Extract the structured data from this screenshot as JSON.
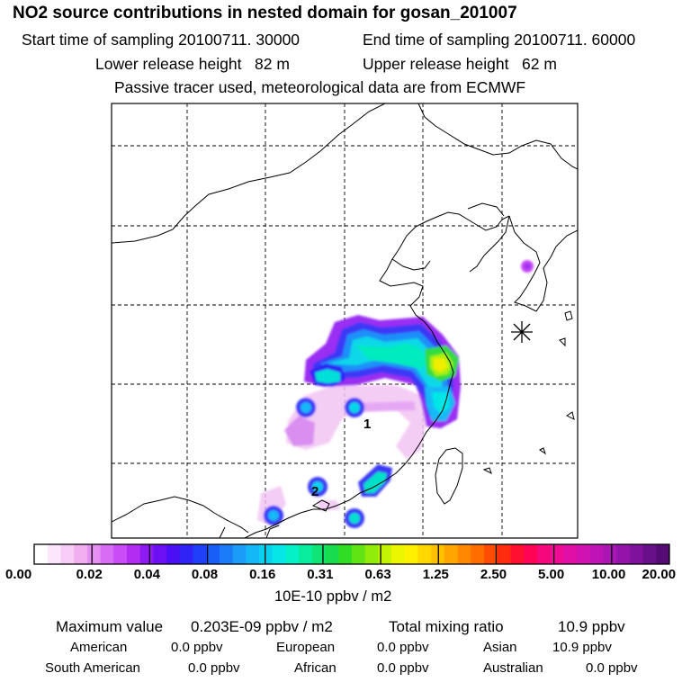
{
  "header": {
    "title": "NO2 source contributions in nested domain for gosan_201007",
    "start_time": "Start time of sampling 20100711. 30000",
    "end_time": "End time of sampling 20100711. 60000",
    "lower_height": "Lower release height   82 m",
    "upper_height": "Upper release height   62 m",
    "tracer_note": "Passive tracer used, meteorological data are from ECMWF"
  },
  "map": {
    "point_labels": [
      "1",
      "2"
    ],
    "station_marker": "station-asterisk"
  },
  "colorbar": {
    "tick_labels": [
      "0.00",
      "0.02",
      "0.04",
      "0.08",
      "0.16",
      "0.31",
      "0.63",
      "1.25",
      "2.50",
      "5.00",
      "10.00",
      "20.00"
    ],
    "unit": "10E-10 ppbv / m2",
    "colors": [
      "#ffffff",
      "#fbe6fb",
      "#f6cdf6",
      "#f0b0f0",
      "#e690f3",
      "#d96cf5",
      "#c94cf6",
      "#b22cf2",
      "#8e1af0",
      "#6a10f2",
      "#4a0ff2",
      "#2f24f5",
      "#1f40f8",
      "#1a5ef8",
      "#1a7cf8",
      "#1a9cf8",
      "#12b8f6",
      "#0ad0f0",
      "#06e6e6",
      "#06f0c8",
      "#08ec9e",
      "#10e476",
      "#18dc4e",
      "#30dc24",
      "#60e414",
      "#92ec0a",
      "#c4f404",
      "#ecf600",
      "#fff000",
      "#ffd800",
      "#ffc000",
      "#ffa400",
      "#ff8800",
      "#ff6c00",
      "#ff4c00",
      "#ff2c10",
      "#ff1030",
      "#ff0456",
      "#f6087a",
      "#ee0c94",
      "#e010a6",
      "#d012b0",
      "#be14b6",
      "#aa16b4",
      "#9414aa",
      "#7e129c",
      "#68108a",
      "#520c74"
    ]
  },
  "stats": {
    "max_label": "Maximum value",
    "max_value": "0.203E-09 ppbv / m2",
    "total_label": "Total mixing ratio",
    "total_value": "10.9 ppbv"
  },
  "regions": [
    {
      "name": "American",
      "value": "0.0 ppbv"
    },
    {
      "name": "European",
      "value": "0.0 ppbv"
    },
    {
      "name": "Asian",
      "value": "10.9 ppbv"
    },
    {
      "name": "South American",
      "value": "0.0 ppbv"
    },
    {
      "name": "African",
      "value": "0.0 ppbv"
    },
    {
      "name": "Australian",
      "value": "0.0 ppbv"
    }
  ]
}
